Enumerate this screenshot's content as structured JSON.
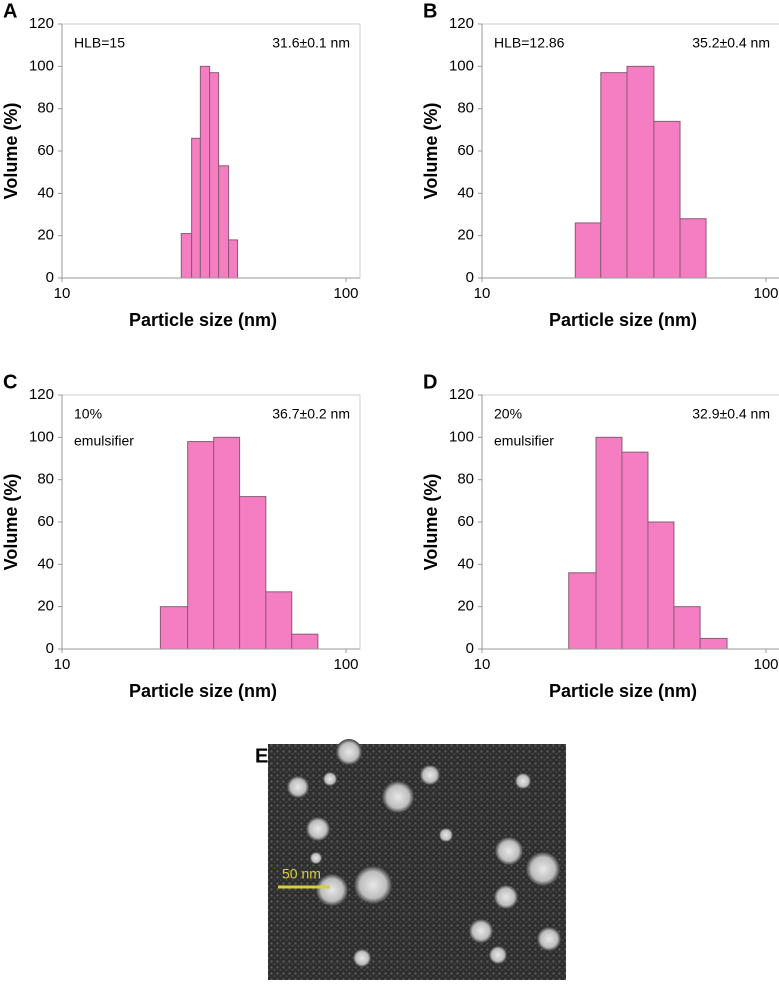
{
  "chart_data": [
    {
      "type": "histogram",
      "panel_label": "A",
      "annotations": [
        "HLB=15"
      ],
      "size_label": "31.6±0.1 nm",
      "x_label": "Particle size (nm)",
      "y_label": "Volume (%)",
      "bins": [
        26.3,
        28.6,
        30.7,
        33.1,
        35.6,
        38.6,
        41.5
      ],
      "values": [
        21,
        66,
        100,
        97,
        53,
        18
      ],
      "color": "#f57ec2",
      "x_log": true,
      "xlim": [
        10,
        112
      ],
      "xticks": [
        10,
        100
      ],
      "ylim": [
        0,
        120
      ],
      "yticks": [
        0,
        20,
        40,
        60,
        80,
        100,
        120
      ]
    },
    {
      "type": "histogram",
      "panel_label": "B",
      "annotations": [
        "HLB=12.86"
      ],
      "size_label": "35.2±0.4 nm",
      "x_label": "Particle size (nm)",
      "y_label": "Volume (%)",
      "bins": [
        21.3,
        26.2,
        32.4,
        40.3,
        49.8,
        61.5
      ],
      "values": [
        26,
        97,
        100,
        74,
        28
      ],
      "color": "#f57ec2",
      "x_log": true,
      "xlim": [
        10,
        112
      ],
      "xticks": [
        10,
        100
      ],
      "ylim": [
        0,
        120
      ],
      "yticks": [
        0,
        20,
        40,
        60,
        80,
        100,
        120
      ]
    },
    {
      "type": "histogram",
      "panel_label": "C",
      "annotations": [
        "10%",
        "emulsifier"
      ],
      "size_label": "36.7±0.2 nm",
      "x_label": "Particle size (nm)",
      "y_label": "Volume (%)",
      "bins": [
        22.2,
        27.7,
        34.2,
        42.2,
        52.2,
        64.4,
        79.6
      ],
      "values": [
        20,
        98,
        100,
        72,
        27,
        7
      ],
      "color": "#f57ec2",
      "x_log": true,
      "xlim": [
        10,
        112
      ],
      "xticks": [
        10,
        100
      ],
      "ylim": [
        0,
        120
      ],
      "yticks": [
        0,
        20,
        40,
        60,
        80,
        100,
        120
      ]
    },
    {
      "type": "histogram",
      "panel_label": "D",
      "annotations": [
        "20%",
        "emulsifier"
      ],
      "size_label": "32.9±0.4 nm",
      "x_label": "Particle size (nm)",
      "y_label": "Volume (%)",
      "bins": [
        20.2,
        25.2,
        31.1,
        38.4,
        47.4,
        58.6,
        72.9
      ],
      "values": [
        36,
        100,
        93,
        60,
        20,
        5
      ],
      "color": "#f57ec2",
      "x_log": true,
      "xlim": [
        10,
        112
      ],
      "xticks": [
        10,
        100
      ],
      "ylim": [
        0,
        120
      ],
      "yticks": [
        0,
        20,
        40,
        60,
        80,
        100,
        120
      ]
    }
  ],
  "image_panel": {
    "panel_label": "E",
    "scale_bar": "50 nm"
  }
}
